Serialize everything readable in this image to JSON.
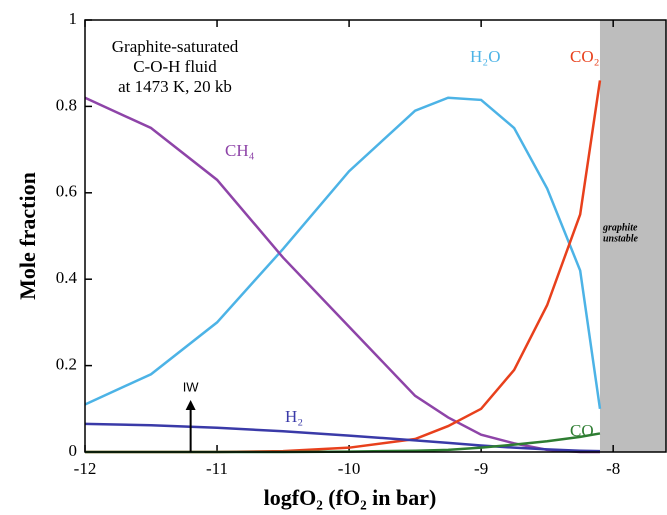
{
  "chart_data": {
    "type": "line",
    "xlabel": "logfO₂ (fO₂ in bar)",
    "ylabel": "Mole fraction",
    "x": [
      -12,
      -11.5,
      -11,
      -10.5,
      -10,
      -9.5,
      -9.25,
      -9,
      -8.75,
      -8.5,
      -8.25,
      -8.1
    ],
    "series": [
      {
        "name": "H₂O",
        "color": "#4cb3e6",
        "values": [
          0.11,
          0.18,
          0.3,
          0.47,
          0.65,
          0.79,
          0.82,
          0.815,
          0.75,
          0.61,
          0.42,
          0.1
        ]
      },
      {
        "name": "CH₄",
        "color": "#8e44a8",
        "values": [
          0.82,
          0.75,
          0.63,
          0.45,
          0.29,
          0.13,
          0.08,
          0.04,
          0.02,
          0.005,
          0,
          0
        ]
      },
      {
        "name": "CO₂",
        "color": "#e8401c",
        "values": [
          0,
          0,
          0,
          0.002,
          0.01,
          0.03,
          0.06,
          0.1,
          0.19,
          0.34,
          0.55,
          0.86
        ]
      },
      {
        "name": "H₂",
        "color": "#3a3aa8",
        "values": [
          0.065,
          0.062,
          0.056,
          0.048,
          0.038,
          0.027,
          0.021,
          0.015,
          0.01,
          0.006,
          0.003,
          0.002
        ]
      },
      {
        "name": "CO",
        "color": "#2e7d32",
        "values": [
          0,
          0,
          0,
          0,
          0.001,
          0.003,
          0.005,
          0.01,
          0.017,
          0.025,
          0.035,
          0.043
        ]
      }
    ],
    "xlim": [
      -12,
      -7.6
    ],
    "ylim": [
      0,
      1
    ],
    "xticks": [
      -12,
      -11,
      -10,
      -9,
      -8
    ],
    "yticks": [
      0,
      0.2,
      0.4,
      0.6,
      0.8,
      1
    ],
    "note": [
      "Graphite-saturated",
      "C-O-H fluid",
      "at 1473 K, 20 kb"
    ],
    "shaded_region": {
      "xmin": -8.1,
      "label": [
        "graphite",
        "unstable"
      ]
    },
    "annotation": {
      "text": "IW",
      "x": -11.2
    }
  }
}
